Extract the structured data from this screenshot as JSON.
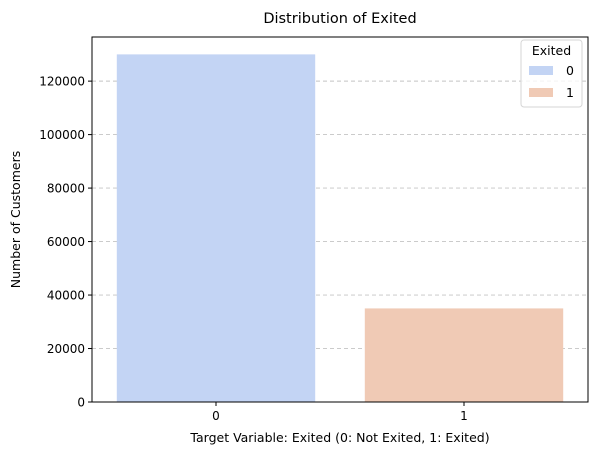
{
  "chart_data": {
    "type": "bar",
    "title": "Distribution of Exited",
    "xlabel": "Target Variable: Exited (0: Not Exited, 1: Exited)",
    "ylabel": "Number of Customers",
    "categories": [
      "0",
      "1"
    ],
    "values": [
      130000,
      35000
    ],
    "colors": [
      "#c3d4f4",
      "#f0cab5"
    ],
    "ylim": [
      0,
      136500
    ],
    "yticks": [
      0,
      20000,
      40000,
      60000,
      80000,
      100000,
      120000
    ],
    "grid": "y-dashed",
    "legend": {
      "title": "Exited",
      "position": "top-right",
      "entries": [
        "0",
        "1"
      ]
    }
  }
}
